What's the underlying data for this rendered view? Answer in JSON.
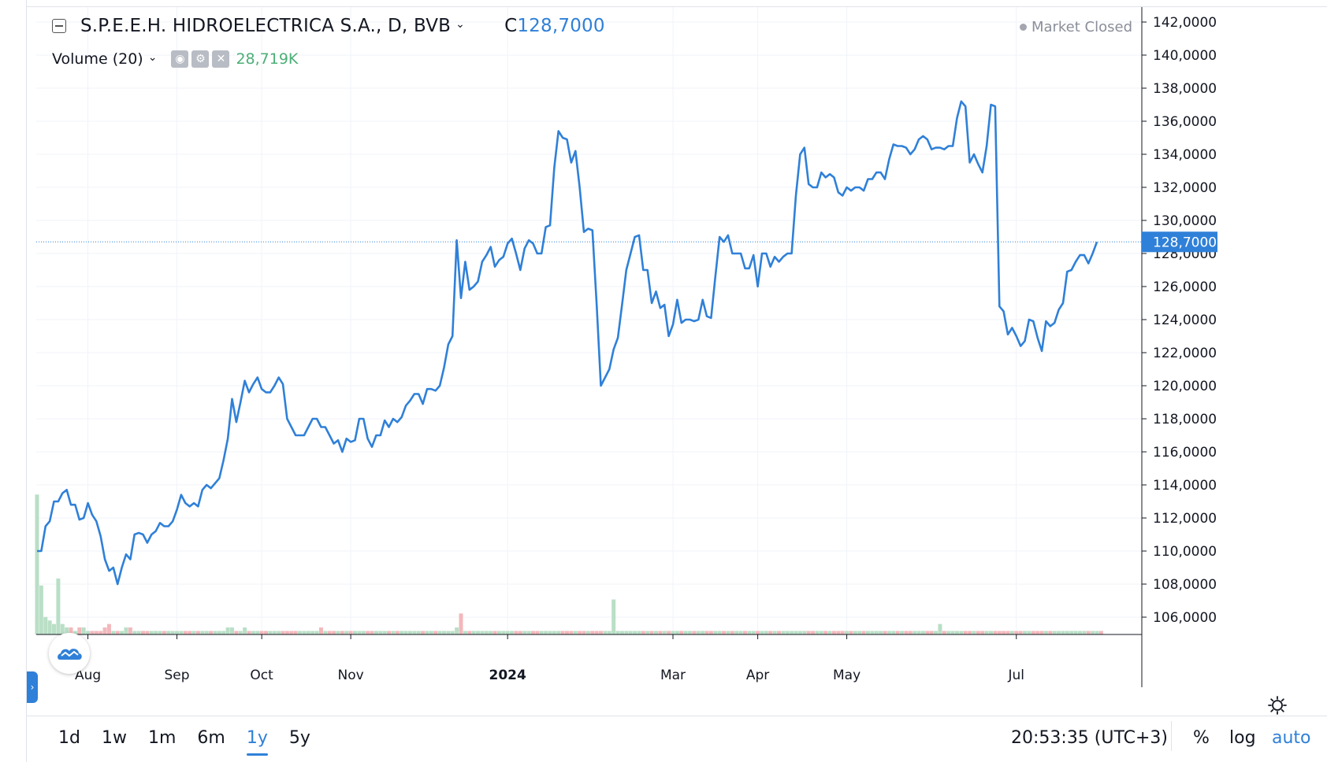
{
  "legend": {
    "symbol": "S.P.E.E.H. HIDROELECTRICA S.A., D, BVB",
    "close_label": "C",
    "close_value": "128,7000",
    "status": "Market Closed"
  },
  "volume_legend": {
    "label": "Volume (20)",
    "value": "28,719K"
  },
  "ranges": [
    "1d",
    "1w",
    "1m",
    "6m",
    "1y",
    "5y"
  ],
  "active_range": "1y",
  "clock": "20:53:35 (UTC+3)",
  "scale_buttons": {
    "percent": "%",
    "log": "log",
    "auto": "auto"
  },
  "colors": {
    "line": "#2f80d8",
    "vol_up": "#b9dfc6",
    "vol_down": "#f2b8bb",
    "accent": "#2f80d8"
  },
  "chart_data": {
    "type": "line",
    "title": "S.P.E.E.H. HIDROELECTRICA S.A., D, BVB",
    "xlabel": "",
    "ylabel": "",
    "ylim": [
      105,
      142.3
    ],
    "y_ticks": [
      "142,0000",
      "140,0000",
      "138,0000",
      "136,0000",
      "134,0000",
      "132,0000",
      "130,0000",
      "128,0000",
      "126,0000",
      "124,0000",
      "122,0000",
      "120,0000",
      "118,0000",
      "116,0000",
      "114,0000",
      "112,0000",
      "110,0000",
      "108,0000",
      "106,0000"
    ],
    "y_tick_values": [
      142,
      140,
      138,
      136,
      134,
      132,
      130,
      128,
      126,
      124,
      122,
      120,
      118,
      116,
      114,
      112,
      110,
      108,
      106
    ],
    "x_ticks": [
      {
        "label": "Aug",
        "i": 12
      },
      {
        "label": "Sep",
        "i": 33
      },
      {
        "label": "Oct",
        "i": 53
      },
      {
        "label": "Nov",
        "i": 74
      },
      {
        "label": "2024",
        "i": 111,
        "bold": true
      },
      {
        "label": "Mar",
        "i": 150
      },
      {
        "label": "Apr",
        "i": 170
      },
      {
        "label": "May",
        "i": 191
      },
      {
        "label": "Jul",
        "i": 231
      }
    ],
    "last_price": 128.7,
    "last_price_label": "128,7000",
    "series": [
      {
        "values": [
          110.0,
          110.0,
          111.5,
          111.8,
          113.0,
          113.0,
          113.5,
          113.7,
          112.8,
          112.8,
          111.9,
          112.0,
          112.9,
          112.2,
          111.8,
          110.9,
          109.5,
          108.8,
          109.0,
          108.0,
          109.0,
          109.8,
          109.5,
          111.0,
          111.1,
          111.0,
          110.5,
          111.0,
          111.2,
          111.7,
          111.5,
          111.5,
          111.8,
          112.5,
          113.4,
          112.9,
          112.7,
          112.9,
          112.7,
          113.7,
          114.0,
          113.8,
          114.1,
          114.4,
          115.5,
          116.8,
          119.2,
          117.8,
          119.0,
          120.3,
          119.6,
          120.1,
          120.5,
          119.8,
          119.6,
          119.6,
          120.0,
          120.5,
          120.1,
          118.0,
          117.5,
          117.0,
          117.0,
          117.0,
          117.5,
          118.0,
          118.0,
          117.5,
          117.5,
          117.0,
          116.5,
          116.7,
          116.0,
          116.8,
          116.6,
          116.7,
          118.0,
          118.0,
          116.8,
          116.3,
          117.0,
          117.0,
          117.9,
          117.5,
          118.0,
          117.8,
          118.1,
          118.8,
          119.1,
          119.5,
          119.5,
          118.9,
          119.8,
          119.8,
          119.7,
          120.0,
          121.1,
          122.5,
          123.0,
          128.8,
          125.3,
          127.5,
          125.8,
          126.0,
          126.3,
          127.5,
          127.9,
          128.4,
          127.2,
          127.6,
          127.8,
          128.6,
          128.9,
          128.0,
          127.0,
          128.3,
          128.8,
          128.6,
          128.0,
          128.0,
          129.6,
          129.7,
          133.2,
          135.4,
          135.0,
          134.9,
          133.5,
          134.2,
          132.0,
          129.3,
          129.5,
          129.4,
          124.9,
          120.0,
          120.5,
          121.0,
          122.2,
          122.9,
          124.9,
          127.0,
          128.0,
          129.0,
          129.1,
          127.0,
          127.0,
          125.0,
          125.7,
          124.7,
          124.9,
          123.0,
          123.7,
          125.2,
          123.8,
          124.0,
          124.0,
          123.9,
          124.0,
          125.2,
          124.2,
          124.1,
          126.6,
          129.0,
          128.7,
          129.1,
          128.0,
          128.0,
          128.0,
          127.1,
          127.1,
          127.9,
          126.0,
          128.0,
          128.0,
          127.2,
          127.8,
          127.5,
          127.8,
          128.0,
          128.0,
          131.5,
          134.0,
          134.4,
          132.2,
          132.0,
          132.0,
          132.9,
          132.6,
          132.8,
          132.6,
          131.7,
          131.5,
          132.0,
          131.8,
          132.0,
          132.0,
          131.8,
          132.5,
          132.5,
          132.9,
          132.9,
          132.5,
          133.7,
          134.6,
          134.5,
          134.5,
          134.4,
          134.0,
          134.3,
          134.9,
          135.1,
          134.9,
          134.3,
          134.4,
          134.4,
          134.3,
          134.5,
          134.5,
          136.2,
          137.2,
          136.9,
          133.5,
          134.0,
          133.4,
          132.9,
          134.5,
          137.0,
          136.9,
          124.8,
          124.5,
          123.1,
          123.5,
          123.0,
          122.4,
          122.7,
          124.0,
          123.9,
          122.9,
          122.1,
          123.9,
          123.6,
          123.8,
          124.6,
          125.0,
          126.9,
          127.0,
          127.5,
          127.9,
          127.9,
          127.4,
          128.0,
          128.7
        ]
      }
    ],
    "volume_values": [
      40,
      14,
      5,
      4,
      3,
      16,
      3,
      2,
      2,
      1,
      2,
      2,
      1,
      1,
      1,
      1,
      2,
      3,
      1,
      1,
      1,
      2,
      2,
      1,
      1,
      1,
      1,
      1,
      1,
      1,
      1,
      1,
      1,
      1,
      1,
      1,
      1,
      1,
      1,
      1,
      1,
      1,
      1,
      1,
      1,
      2,
      2,
      1,
      1,
      2,
      1,
      1,
      1,
      1,
      1,
      1,
      1,
      1,
      1,
      1,
      1,
      1,
      1,
      1,
      1,
      1,
      1,
      2,
      1,
      1,
      1,
      1,
      1,
      1,
      1,
      1,
      1,
      1,
      1,
      1,
      1,
      1,
      1,
      1,
      1,
      1,
      1,
      1,
      1,
      1,
      1,
      1,
      1,
      1,
      1,
      1,
      1,
      1,
      1,
      2,
      6,
      1,
      1,
      1,
      1,
      1,
      1,
      1,
      1,
      1,
      1,
      1,
      1,
      1,
      1,
      1,
      1,
      1,
      1,
      1,
      1,
      1,
      1,
      1,
      1,
      1,
      1,
      1,
      1,
      1,
      1,
      1,
      1,
      1,
      1,
      1,
      10,
      1,
      1,
      1,
      1,
      1,
      1,
      1,
      1,
      1,
      1,
      1,
      1,
      1,
      1,
      1,
      1,
      1,
      1,
      1,
      1,
      1,
      1,
      1,
      1,
      1,
      1,
      1,
      1,
      1,
      1,
      1,
      1,
      1,
      1,
      1,
      1,
      1,
      1,
      1,
      1,
      1,
      1,
      1,
      1,
      1,
      1,
      1,
      1,
      1,
      1,
      1,
      1,
      1,
      1,
      1,
      1,
      1,
      1,
      1,
      1,
      1,
      1,
      1,
      1,
      1,
      1,
      1,
      1,
      1,
      1,
      1,
      1,
      1,
      1,
      1,
      1,
      3,
      1,
      1,
      1,
      1,
      1,
      1,
      1,
      1,
      1,
      1,
      1,
      1,
      1,
      1,
      1,
      1,
      1,
      1,
      1,
      1,
      1,
      1,
      1,
      1,
      1,
      1,
      1,
      1,
      1,
      1,
      1,
      1,
      1,
      1,
      1,
      1,
      1,
      1
    ],
    "volume_max": 45
  }
}
